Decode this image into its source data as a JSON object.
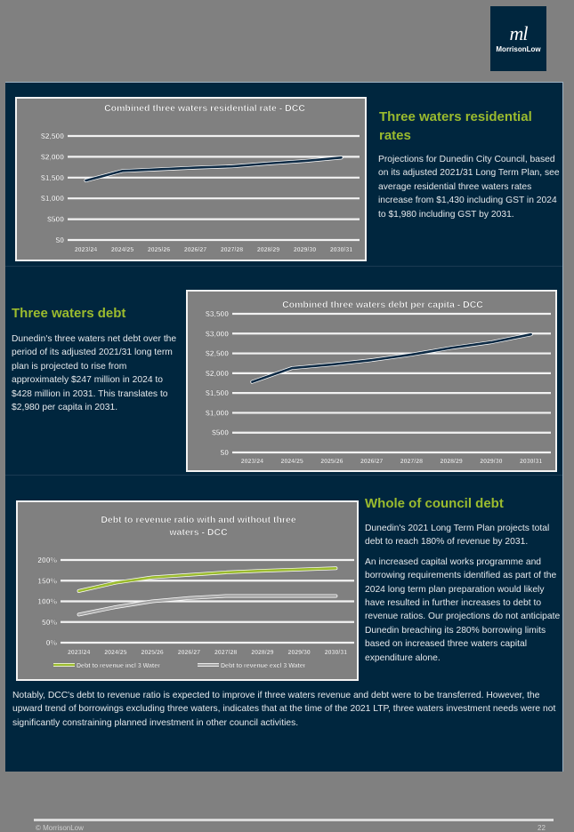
{
  "logo": {
    "mark": "ml",
    "name": "MorrisonLow"
  },
  "sections": {
    "residential_rates": {
      "heading": "Three waters residential rates",
      "body": "Projections for Dunedin City Council, based on its adjusted 2021/31 Long Term Plan, see average residential three waters rates increase from $1,430 including GST in 2024 to $1,980 including GST by 2031."
    },
    "three_waters_debt": {
      "heading": "Three waters debt",
      "body": "Dunedin's three waters net debt over the period of its adjusted 2021/31 long term plan is projected to rise from approximately $247 million in 2024 to $428 million in 2031.  This translates to $2,980 per capita in 2031."
    },
    "council_debt": {
      "heading": "Whole of council debt",
      "paragraphs": [
        "Dunedin's 2021 Long Term Plan projects total debt to reach 180% of revenue by 2031.",
        "An increased capital works programme and borrowing requirements identified as part of the 2024 long term plan preparation would likely have resulted in further increases to debt to revenue ratios. Our projections do not anticipate Dunedin breaching its 280% borrowing limits based on increased three waters capital expenditure alone."
      ],
      "note": "Notably, DCC's debt to revenue ratio is expected to improve if three waters revenue and debt were to be transferred.  However, the upward trend of borrowings excluding three waters, indicates that at the time of the 2021 LTP, three waters investment needs were not significantly constraining planned investment in other council activities."
    }
  },
  "footer": {
    "copyright": "© MorrisonLow",
    "page": "22"
  },
  "colors": {
    "navy": "#00263e",
    "green": "#9bbb2e",
    "gray": "#808080",
    "line_navy": "#0d2a44"
  },
  "chart_data": [
    {
      "type": "line",
      "title": "Combined three waters residential rate - DCC",
      "categories": [
        "2023/24",
        "2024/25",
        "2025/26",
        "2026/27",
        "2027/28",
        "2028/29",
        "2029/30",
        "2030/31"
      ],
      "series": [
        {
          "name": "Residential rate",
          "values": [
            1430,
            1660,
            1700,
            1740,
            1770,
            1840,
            1900,
            1980
          ],
          "color": "#0d2a44"
        }
      ],
      "yticks": [
        "$0",
        "$500",
        "$1,000",
        "$1,500",
        "$2,000",
        "$2,500"
      ],
      "ylim": [
        0,
        2500
      ],
      "xlabel": "",
      "ylabel": "",
      "grid": true,
      "legend": "none"
    },
    {
      "type": "line",
      "title": "Combined three waters debt per capita - DCC",
      "categories": [
        "2023/24",
        "2024/25",
        "2025/26",
        "2026/27",
        "2027/28",
        "2028/29",
        "2029/30",
        "2030/31"
      ],
      "series": [
        {
          "name": "Debt per capita",
          "values": [
            1780,
            2130,
            2220,
            2330,
            2470,
            2640,
            2780,
            2980
          ],
          "color": "#0d2a44"
        }
      ],
      "yticks": [
        "$0",
        "$500",
        "$1,000",
        "$1,500",
        "$2,000",
        "$2,500",
        "$3,000",
        "$3,500"
      ],
      "ylim": [
        0,
        3500
      ],
      "xlabel": "",
      "ylabel": "",
      "grid": true,
      "legend": "none"
    },
    {
      "type": "line",
      "title": "Debt to revenue ratio with and without three waters - DCC",
      "title_lines": [
        "Debt to revenue ratio with and without three",
        "waters - DCC"
      ],
      "categories": [
        "2023/24",
        "2024/25",
        "2025/26",
        "2026/27",
        "2027/28",
        "2028/29",
        "2029/30",
        "2030/31"
      ],
      "series": [
        {
          "name": "Debt to revenue incl 3 Water",
          "values": [
            125,
            145,
            158,
            164,
            170,
            174,
            177,
            180
          ],
          "color": "#9bbb2e"
        },
        {
          "name": "Debt to revenue excl 3 Water",
          "values": [
            68,
            86,
            100,
            108,
            113,
            113,
            113,
            113
          ],
          "color": "#a6a6a6"
        }
      ],
      "yticks": [
        "0%",
        "50%",
        "100%",
        "150%",
        "200%"
      ],
      "ylim": [
        0,
        200
      ],
      "xlabel": "",
      "ylabel": "",
      "grid": true,
      "legend": "bottom"
    }
  ]
}
